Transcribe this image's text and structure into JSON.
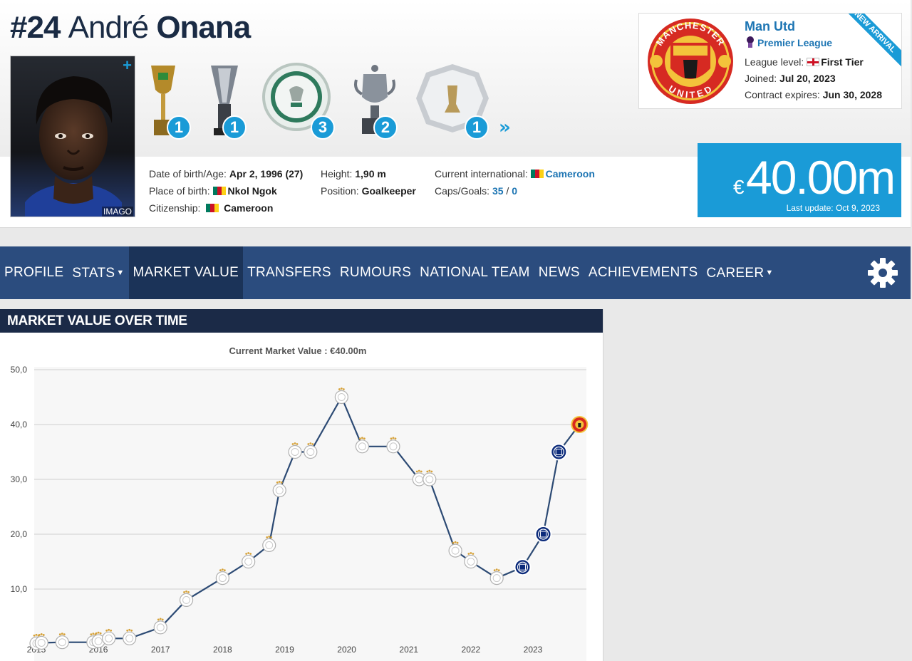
{
  "player": {
    "number": "#24",
    "first_name": "André",
    "last_name": "Onana",
    "photo_credit": "IMAGO",
    "photo_plus": "+"
  },
  "trophies": [
    {
      "name": "coppa-italia",
      "count": "1"
    },
    {
      "name": "italian-super-cup",
      "count": "1"
    },
    {
      "name": "eredivisie-plate",
      "count": "3"
    },
    {
      "name": "knvb-cup",
      "count": "2"
    },
    {
      "name": "johan-cruijff-shield",
      "count": "1"
    }
  ],
  "trophies_more": "»",
  "info": {
    "dob_label": "Date of birth/Age:",
    "dob_value": "Apr 2, 1996 (27)",
    "pob_label": "Place of birth:",
    "pob_value": "Nkol Ngok",
    "citizenship_label": "Citizenship:",
    "citizenship_value": "Cameroon",
    "height_label": "Height:",
    "height_value": "1,90 m",
    "position_label": "Position:",
    "position_value": "Goalkeeper",
    "intl_label": "Current international:",
    "intl_value": "Cameroon",
    "caps_label": "Caps/Goals:",
    "caps_value": "35",
    "caps_sep": " / ",
    "goals_value": "0"
  },
  "club": {
    "name": "Man Utd",
    "league": "Premier League",
    "ribbon": "NEW ARRIVAL",
    "level_label": "League level:",
    "level_value": "First Tier",
    "joined_label": "Joined:",
    "joined_value": "Jul 20, 2023",
    "contract_label": "Contract expires:",
    "contract_value": "Jun 30, 2028",
    "crest_text_top": "MANCHESTER",
    "crest_text_bottom": "UNITED"
  },
  "market_value": {
    "currency": "€",
    "amount": "40.00m",
    "last_update": "Last update: Oct 9, 2023"
  },
  "nav": {
    "items": [
      {
        "label": "PROFILE",
        "dropdown": false
      },
      {
        "label": "STATS",
        "dropdown": true
      },
      {
        "label": "MARKET VALUE",
        "dropdown": false,
        "active": true
      },
      {
        "label": "TRANSFERS",
        "dropdown": false
      },
      {
        "label": "RUMOURS",
        "dropdown": false
      },
      {
        "label": "NATIONAL TEAM",
        "dropdown": false
      },
      {
        "label": "NEWS",
        "dropdown": false
      },
      {
        "label": "ACHIEVEMENTS",
        "dropdown": false
      },
      {
        "label": "CAREER",
        "dropdown": true
      }
    ],
    "caret": "▼"
  },
  "panel": {
    "title": "MARKET VALUE OVER TIME"
  },
  "colors": {
    "nav_bg": "#2b4c7e",
    "nav_active": "#1b3358",
    "accent": "#1a9bd7",
    "panel_head": "#1b2a47",
    "line": "#2c4a74",
    "ajax": "#ffffff",
    "inter": "#0b2a7a",
    "manutd": "#da291c"
  },
  "chart_data": {
    "type": "line",
    "title": "Current Market Value : €40.00m",
    "xlabel": "",
    "ylabel": "",
    "ylim": [
      0,
      50
    ],
    "yticks": [
      "10,0",
      "20,0",
      "30,0",
      "40,0",
      "50,0"
    ],
    "xticks": [
      "2015",
      "2016",
      "2017",
      "2018",
      "2019",
      "2020",
      "2021",
      "2022",
      "2023"
    ],
    "grid": true,
    "series": [
      {
        "points": [
          {
            "x": "2015-01",
            "y": 0.1,
            "club": "ajax"
          },
          {
            "x": "2015-02",
            "y": 0.2,
            "club": "ajax"
          },
          {
            "x": "2015-06",
            "y": 0.3,
            "club": "ajax"
          },
          {
            "x": "2015-12",
            "y": 0.3,
            "club": "ajax"
          },
          {
            "x": "2016-01",
            "y": 0.5,
            "club": "ajax"
          },
          {
            "x": "2016-03",
            "y": 1.0,
            "club": "ajax"
          },
          {
            "x": "2016-07",
            "y": 1.0,
            "club": "ajax"
          },
          {
            "x": "2017-01",
            "y": 3.0,
            "club": "ajax"
          },
          {
            "x": "2017-06",
            "y": 8.0,
            "club": "ajax"
          },
          {
            "x": "2018-01",
            "y": 12.0,
            "club": "ajax"
          },
          {
            "x": "2018-06",
            "y": 15.0,
            "club": "ajax"
          },
          {
            "x": "2018-10",
            "y": 18.0,
            "club": "ajax"
          },
          {
            "x": "2018-12",
            "y": 28.0,
            "club": "ajax"
          },
          {
            "x": "2019-03",
            "y": 35.0,
            "club": "ajax"
          },
          {
            "x": "2019-06",
            "y": 35.0,
            "club": "ajax"
          },
          {
            "x": "2019-12",
            "y": 45.0,
            "club": "ajax"
          },
          {
            "x": "2020-04",
            "y": 36.0,
            "club": "ajax"
          },
          {
            "x": "2020-10",
            "y": 36.0,
            "club": "ajax"
          },
          {
            "x": "2021-03",
            "y": 30.0,
            "club": "ajax"
          },
          {
            "x": "2021-05",
            "y": 30.0,
            "club": "ajax"
          },
          {
            "x": "2021-10",
            "y": 17.0,
            "club": "ajax"
          },
          {
            "x": "2022-01",
            "y": 15.0,
            "club": "ajax"
          },
          {
            "x": "2022-06",
            "y": 12.0,
            "club": "ajax"
          },
          {
            "x": "2022-11",
            "y": 14.0,
            "club": "inter"
          },
          {
            "x": "2023-03",
            "y": 20.0,
            "club": "inter"
          },
          {
            "x": "2023-06",
            "y": 35.0,
            "club": "inter"
          },
          {
            "x": "2023-10",
            "y": 40.0,
            "club": "manutd"
          }
        ]
      }
    ]
  }
}
